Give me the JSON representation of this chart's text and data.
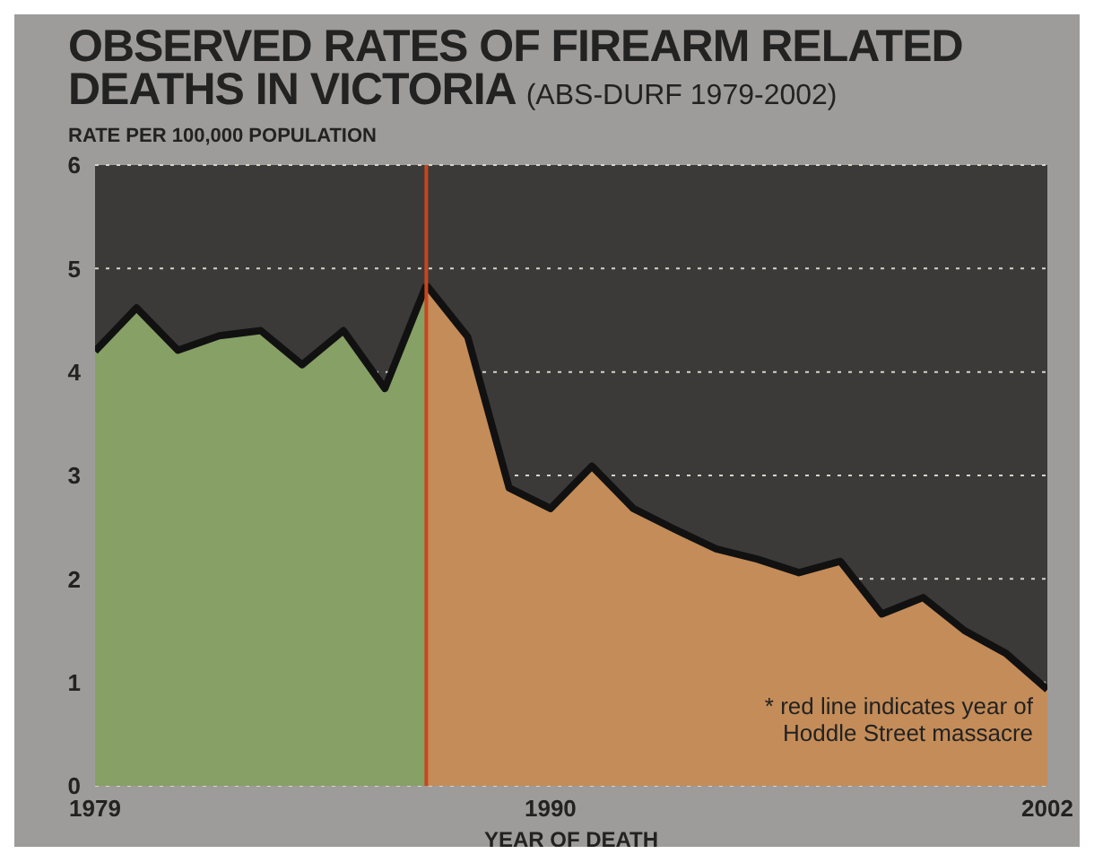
{
  "chart_data": {
    "type": "area",
    "title": "OBSERVED RATES OF FIREARM RELATED DEATHS IN VICTORIA",
    "subtitle": "(ABS-DURF 1979-2002)",
    "ylabel": "RATE PER 100,000 POPULATION",
    "xlabel": "YEAR OF DEATH",
    "series": [
      {
        "color": "#86a065",
        "x": [
          1979,
          1980,
          1981,
          1982,
          1983,
          1984,
          1985,
          1986,
          1987
        ],
        "values": [
          4.2,
          4.62,
          4.21,
          4.35,
          4.4,
          4.07,
          4.4,
          3.84,
          4.84
        ]
      },
      {
        "color": "#c48c58",
        "x": [
          1987,
          1988,
          1989,
          1990,
          1991,
          1992,
          1993,
          1994,
          1995,
          1996,
          1997,
          1998,
          1999,
          2000,
          2001,
          2002
        ],
        "values": [
          4.84,
          4.34,
          2.88,
          2.68,
          3.09,
          2.68,
          2.48,
          2.29,
          2.19,
          2.06,
          2.17,
          1.66,
          1.82,
          1.5,
          1.28,
          0.93
        ]
      }
    ],
    "xlim": [
      1979,
      2002
    ],
    "xticks": [
      1979,
      1990,
      2002
    ],
    "ylim": [
      0,
      6
    ],
    "yticks": [
      0,
      1,
      2,
      3,
      4,
      5,
      6
    ],
    "grid": "y",
    "ref_lines": [
      {
        "axis": "x",
        "value": 1987,
        "color": "#c8461e"
      }
    ],
    "annotations": [
      "* red line indicates year of Hoddle Street massacre"
    ]
  }
}
